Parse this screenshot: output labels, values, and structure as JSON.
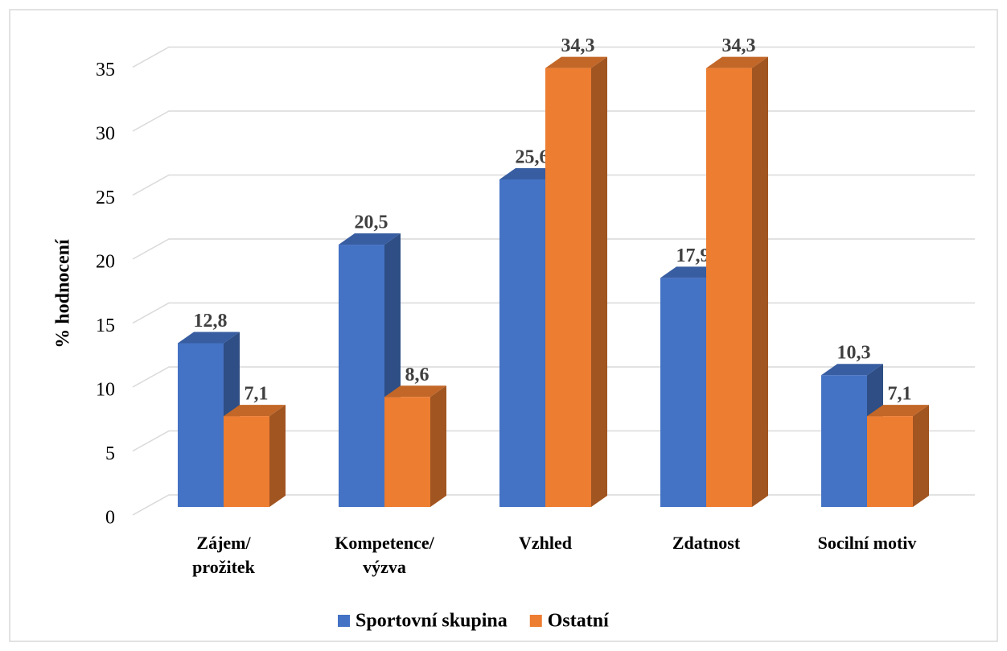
{
  "chart_data": {
    "type": "bar3d",
    "y_label": "% hodnocení",
    "categories": [
      "Zájem/\nprožitek",
      "Kompetence/\nvýzva",
      "Vzhled",
      "Zdatnost",
      "Socilní motiv"
    ],
    "series": [
      {
        "name": "Sportovní skupina",
        "color": "#4472c4",
        "values": [
          12.8,
          20.5,
          25.6,
          17.9,
          10.3
        ],
        "value_labels": [
          "12,8",
          "20,5",
          "25,6",
          "17,9",
          "10,3"
        ]
      },
      {
        "name": "Ostatní",
        "color": "#ed7d31",
        "values": [
          7.1,
          8.6,
          34.3,
          34.3,
          7.1
        ],
        "value_labels": [
          "7,1",
          "8,6",
          "34,3",
          "34,3",
          "7,1"
        ]
      }
    ],
    "ylim": [
      0,
      35
    ],
    "yticks": [
      0,
      5,
      10,
      15,
      20,
      25,
      30,
      35
    ],
    "grid": true,
    "legend": "bottom"
  }
}
